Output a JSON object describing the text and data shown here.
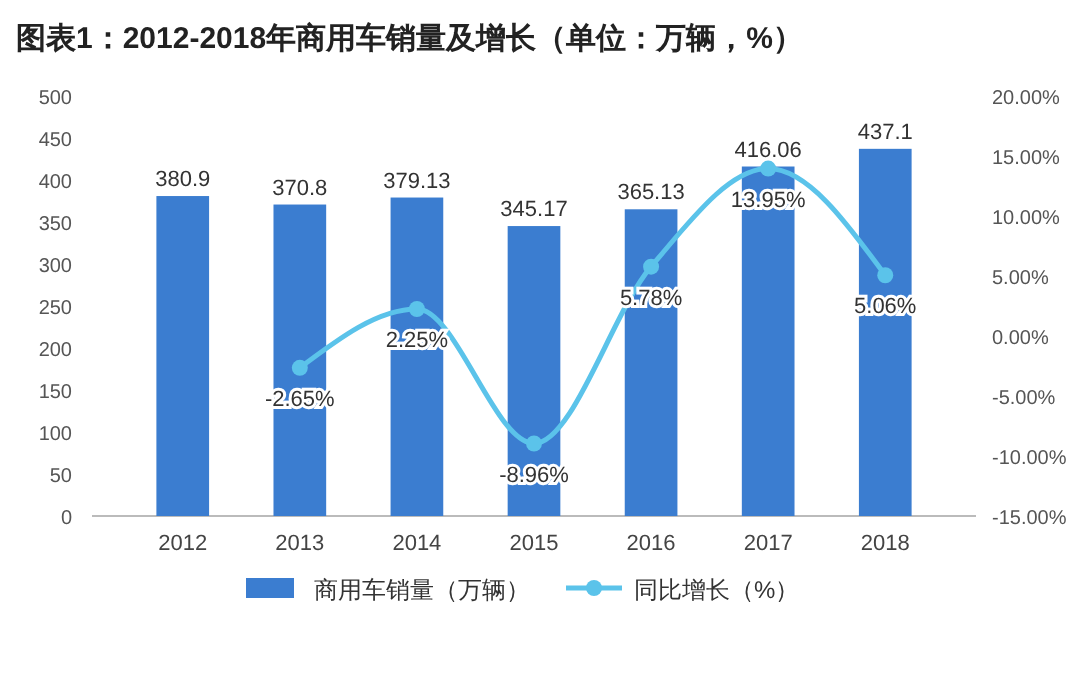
{
  "chart_data": {
    "type": "bar",
    "title": "图表1：2012-2018年商用车销量及增长（单位：万辆，%）",
    "categories": [
      "2012",
      "2013",
      "2014",
      "2015",
      "2016",
      "2017",
      "2018"
    ],
    "series": [
      {
        "name": "商用车销量（万辆）",
        "color": "#3b7dd0",
        "values": [
          380.9,
          370.8,
          379.13,
          345.17,
          365.13,
          416.06,
          437.1
        ],
        "value_labels": [
          "380.9",
          "370.8",
          "379.13",
          "345.17",
          "365.13",
          "416.06",
          "437.1"
        ]
      },
      {
        "name": "同比增长（%）",
        "type": "line",
        "axis": "y2",
        "color": "#5bc3ea",
        "marker": "circle",
        "values": [
          null,
          -2.65,
          2.25,
          -8.96,
          5.78,
          13.95,
          5.06
        ],
        "value_labels": [
          null,
          "-2.65%",
          "2.25%",
          "-8.96%",
          "5.78%",
          "13.95%",
          "5.06%"
        ]
      }
    ],
    "ylim": [
      0,
      500
    ],
    "yticks": [
      0,
      50,
      100,
      150,
      200,
      250,
      300,
      350,
      400,
      450,
      500
    ],
    "y2lim": [
      -15,
      20
    ],
    "y2ticks": [
      {
        "value": -15,
        "label": "-15.00%"
      },
      {
        "value": -10,
        "label": "-10.00%"
      },
      {
        "value": -5,
        "label": "-5.00%"
      },
      {
        "value": 0,
        "label": "0.00%"
      },
      {
        "value": 5,
        "label": "5.00%"
      },
      {
        "value": 10,
        "label": "10.00%"
      },
      {
        "value": 15,
        "label": "15.00%"
      },
      {
        "value": 20,
        "label": "20.00%"
      }
    ],
    "legend": "bottom",
    "grid": false
  }
}
